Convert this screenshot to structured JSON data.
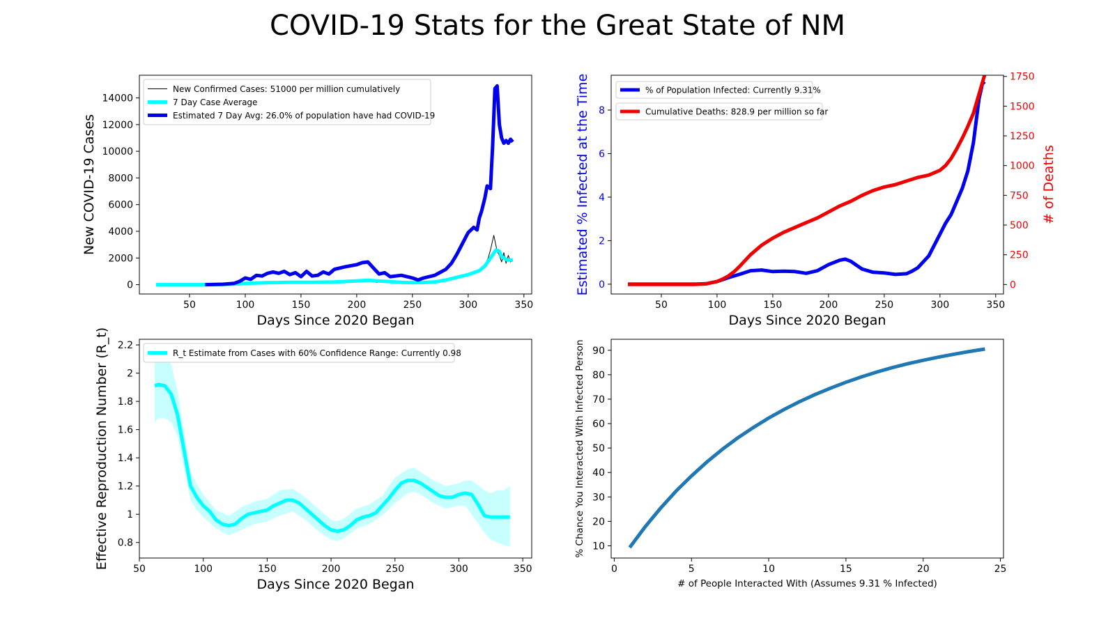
{
  "suptitle": "COVID-19 Stats for the Great State of NM",
  "chart_data": [
    {
      "type": "line",
      "panel": "top-left",
      "xlabel": "Days Since 2020 Began",
      "ylabel": "New COVID-19 Cases",
      "xlim": [
        5,
        357
      ],
      "ylim": [
        -700,
        15700
      ],
      "xticks": [
        50,
        100,
        150,
        200,
        250,
        300,
        350
      ],
      "yticks": [
        0,
        2000,
        4000,
        6000,
        8000,
        10000,
        12000,
        14000
      ],
      "legend_position": "top-left",
      "grid": false,
      "series": [
        {
          "name": "New Confirmed Cases: 51000 per million cumulatively",
          "color": "#000000",
          "width": 1,
          "x": [
            20,
            60,
            80,
            95,
            100,
            120,
            140,
            160,
            180,
            200,
            210,
            215,
            218,
            220,
            230,
            240,
            250,
            260,
            270,
            280,
            285,
            290,
            295,
            300,
            305,
            310,
            315,
            318,
            320,
            323,
            326,
            328,
            330,
            332,
            334,
            336,
            338,
            340
          ],
          "y": [
            0,
            0,
            20,
            60,
            110,
            170,
            190,
            180,
            210,
            300,
            350,
            280,
            150,
            260,
            230,
            190,
            160,
            140,
            190,
            300,
            450,
            600,
            750,
            820,
            980,
            1100,
            1500,
            2000,
            2600,
            3700,
            2500,
            2200,
            1700,
            2400,
            1600,
            2200,
            1700,
            1800
          ]
        },
        {
          "name": "7 Day Case Average",
          "color": "#00FFFF",
          "width": 5,
          "x": [
            20,
            60,
            80,
            95,
            100,
            120,
            140,
            160,
            180,
            200,
            210,
            220,
            230,
            240,
            250,
            260,
            270,
            280,
            290,
            300,
            310,
            315,
            320,
            325,
            328,
            330,
            335,
            340
          ],
          "y": [
            0,
            0,
            20,
            60,
            100,
            150,
            170,
            170,
            200,
            280,
            330,
            270,
            230,
            180,
            150,
            160,
            200,
            350,
            550,
            750,
            1050,
            1400,
            2000,
            2600,
            2500,
            2100,
            1850,
            1850
          ]
        },
        {
          "name": "Estimated 7 Day Avg: 26.0% of population have had COVID-19",
          "color": "#0000EE",
          "width": 5,
          "x": [
            64,
            80,
            90,
            95,
            100,
            105,
            110,
            115,
            120,
            125,
            130,
            135,
            140,
            145,
            150,
            155,
            160,
            165,
            170,
            175,
            180,
            190,
            200,
            205,
            210,
            215,
            220,
            225,
            230,
            240,
            250,
            255,
            260,
            270,
            280,
            285,
            290,
            295,
            300,
            305,
            308,
            310,
            312,
            315,
            317,
            320,
            322,
            324,
            326,
            328,
            330,
            332,
            334,
            336,
            338,
            340
          ],
          "y": [
            0,
            30,
            100,
            250,
            500,
            400,
            700,
            650,
            850,
            950,
            850,
            1000,
            750,
            900,
            600,
            1000,
            650,
            700,
            950,
            800,
            1150,
            1350,
            1500,
            1650,
            1700,
            1250,
            800,
            900,
            600,
            700,
            500,
            350,
            500,
            700,
            1150,
            1600,
            2300,
            3100,
            3900,
            4300,
            4100,
            5000,
            5500,
            6500,
            7400,
            7200,
            10500,
            14700,
            14900,
            12000,
            11000,
            10600,
            10800,
            10600,
            10900,
            10700
          ]
        }
      ]
    },
    {
      "type": "line",
      "panel": "top-right",
      "xlabel": "Days Since 2020 Began",
      "ylabel": "Estimated % Infected at the Time",
      "ylabel_color": "#0000EE",
      "y2label": "# of Deaths",
      "y2label_color": "#EE0000",
      "xlim": [
        5,
        357
      ],
      "ylim": [
        -0.45,
        9.6
      ],
      "y2lim": [
        -80,
        1760
      ],
      "xticks": [
        50,
        100,
        150,
        200,
        250,
        300,
        350
      ],
      "yticks": [
        0,
        2,
        4,
        6,
        8
      ],
      "y2ticks": [
        0,
        250,
        500,
        750,
        1000,
        1250,
        1500,
        1750
      ],
      "legend_position": "top-left",
      "grid": false,
      "series": [
        {
          "name": "% of Population Infected: Currently 9.31%",
          "color": "#0000EE",
          "width": 5,
          "axis": "left",
          "x": [
            20,
            60,
            80,
            90,
            100,
            110,
            120,
            130,
            140,
            150,
            160,
            170,
            180,
            190,
            200,
            210,
            215,
            220,
            230,
            240,
            250,
            260,
            270,
            275,
            280,
            290,
            300,
            305,
            310,
            320,
            325,
            330,
            335,
            338,
            340
          ],
          "y": [
            0,
            0,
            0,
            0.02,
            0.12,
            0.3,
            0.45,
            0.62,
            0.65,
            0.58,
            0.6,
            0.58,
            0.5,
            0.62,
            0.9,
            1.1,
            1.15,
            1.05,
            0.7,
            0.55,
            0.52,
            0.45,
            0.48,
            0.6,
            0.75,
            1.3,
            2.3,
            2.8,
            3.2,
            4.4,
            5.2,
            6.5,
            8.5,
            9.2,
            9.31
          ]
        },
        {
          "name": "Cumulative Deaths: 828.9 per million so far",
          "color": "#EE0000",
          "width": 5,
          "axis": "right",
          "x": [
            20,
            60,
            80,
            90,
            100,
            105,
            110,
            115,
            120,
            130,
            140,
            150,
            160,
            170,
            180,
            190,
            200,
            210,
            220,
            230,
            240,
            250,
            260,
            270,
            280,
            290,
            300,
            305,
            310,
            315,
            320,
            325,
            330,
            335,
            340
          ],
          "y": [
            0,
            0,
            0,
            5,
            25,
            45,
            70,
            105,
            150,
            250,
            330,
            390,
            440,
            480,
            520,
            560,
            610,
            660,
            700,
            750,
            790,
            820,
            840,
            870,
            900,
            920,
            960,
            1000,
            1060,
            1140,
            1230,
            1330,
            1440,
            1600,
            1760
          ]
        }
      ]
    },
    {
      "type": "line",
      "panel": "bottom-left",
      "xlabel": "Days Since 2020 Began",
      "ylabel": "Effective Reproduction Number (R_t)",
      "xlim": [
        50,
        357
      ],
      "ylim": [
        0.69,
        2.24
      ],
      "xticks": [
        50,
        100,
        150,
        200,
        250,
        300,
        350
      ],
      "yticks": [
        0.8,
        1.0,
        1.2,
        1.4,
        1.6,
        1.8,
        2.0,
        2.2
      ],
      "legend_position": "top-left",
      "grid": false,
      "series": [
        {
          "name": "R_t Estimate from Cases with 60% Confidence Range: Currently 0.98",
          "color": "#00FFFF",
          "width": 5,
          "x": [
            62,
            65,
            70,
            75,
            80,
            85,
            90,
            95,
            100,
            105,
            110,
            115,
            120,
            125,
            130,
            135,
            140,
            145,
            150,
            155,
            160,
            165,
            170,
            175,
            180,
            185,
            190,
            195,
            200,
            205,
            210,
            215,
            220,
            225,
            230,
            235,
            240,
            245,
            250,
            255,
            260,
            265,
            270,
            275,
            280,
            285,
            290,
            295,
            300,
            305,
            310,
            315,
            320,
            325,
            330,
            335,
            340
          ],
          "y": [
            1.91,
            1.92,
            1.91,
            1.85,
            1.7,
            1.45,
            1.2,
            1.12,
            1.06,
            1.02,
            0.96,
            0.93,
            0.92,
            0.93,
            0.97,
            1.0,
            1.01,
            1.02,
            1.03,
            1.06,
            1.08,
            1.1,
            1.1,
            1.08,
            1.04,
            1.0,
            0.96,
            0.92,
            0.89,
            0.88,
            0.89,
            0.92,
            0.96,
            0.98,
            0.99,
            1.01,
            1.06,
            1.11,
            1.17,
            1.22,
            1.24,
            1.24,
            1.22,
            1.19,
            1.16,
            1.13,
            1.12,
            1.12,
            1.14,
            1.15,
            1.14,
            1.07,
            0.99,
            0.98,
            0.98,
            0.98,
            0.98
          ]
        },
        {
          "name": "",
          "color": "#00FFFF",
          "band": true,
          "x": [
            62,
            65,
            70,
            75,
            80,
            85,
            90,
            95,
            100,
            110,
            120,
            130,
            140,
            150,
            160,
            170,
            180,
            190,
            200,
            205,
            210,
            220,
            230,
            240,
            250,
            260,
            265,
            270,
            280,
            290,
            300,
            305,
            310,
            320,
            325,
            330,
            335,
            340
          ],
          "lower": [
            1.65,
            1.68,
            1.68,
            1.65,
            1.55,
            1.32,
            1.1,
            1.03,
            0.98,
            0.9,
            0.85,
            0.89,
            0.93,
            0.95,
            0.99,
            1.02,
            0.96,
            0.88,
            0.82,
            0.81,
            0.83,
            0.9,
            0.93,
            0.99,
            1.08,
            1.15,
            1.16,
            1.14,
            1.08,
            1.04,
            1.06,
            1.06,
            1.0,
            0.87,
            0.82,
            0.8,
            0.78,
            0.77
          ],
          "upper": [
            2.2,
            2.15,
            2.13,
            2.06,
            1.87,
            1.58,
            1.3,
            1.21,
            1.14,
            1.03,
            0.99,
            1.05,
            1.09,
            1.11,
            1.17,
            1.18,
            1.12,
            1.04,
            0.96,
            0.95,
            0.97,
            1.04,
            1.07,
            1.13,
            1.26,
            1.32,
            1.33,
            1.3,
            1.24,
            1.2,
            1.22,
            1.24,
            1.24,
            1.17,
            1.15,
            1.17,
            1.17,
            1.2
          ]
        }
      ]
    },
    {
      "type": "line",
      "panel": "bottom-right",
      "xlabel": "# of People Interacted With (Assumes 9.31 % Infected)",
      "ylabel": "% Chance You Interacted With Infected Person",
      "xlim": [
        -0.2,
        25.2
      ],
      "ylim": [
        5,
        94.5
      ],
      "xticks": [
        0,
        5,
        10,
        15,
        20,
        25
      ],
      "yticks": [
        10,
        20,
        30,
        40,
        50,
        60,
        70,
        80,
        90
      ],
      "grid": false,
      "series": [
        {
          "name": "",
          "color": "#1F77B4",
          "width": 5,
          "x": [
            1,
            2,
            3,
            4,
            5,
            6,
            7,
            8,
            9,
            10,
            11,
            12,
            13,
            14,
            15,
            16,
            17,
            18,
            19,
            20,
            21,
            22,
            23,
            24
          ],
          "y": [
            9.31,
            17.8,
            25.4,
            32.4,
            38.6,
            44.3,
            49.5,
            54.2,
            58.4,
            62.3,
            65.8,
            69.0,
            71.9,
            74.5,
            76.9,
            79.1,
            81.1,
            82.9,
            84.5,
            85.9,
            87.2,
            88.4,
            89.5,
            90.5
          ]
        }
      ]
    }
  ]
}
